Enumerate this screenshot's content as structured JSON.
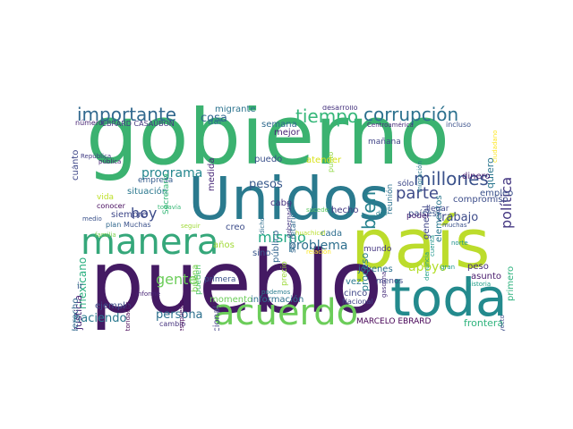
{
  "words": [
    {
      "t": "gobierno",
      "c": "#3bb270"
    },
    {
      "t": "Unidos",
      "c": "#2a7a8e"
    },
    {
      "t": "país",
      "c": "#bcdc2c"
    },
    {
      "t": "pueblo",
      "c": "#441a63"
    },
    {
      "t": "toda",
      "c": "#238a8d"
    },
    {
      "t": "manera",
      "c": "#35a77a"
    },
    {
      "t": "acuerdo",
      "c": "#6ccd5a"
    },
    {
      "t": "importante",
      "c": "#31688e"
    },
    {
      "t": "corrupción",
      "c": "#2c718e"
    },
    {
      "t": "tiempo",
      "c": "#35b779"
    },
    {
      "t": "millones",
      "c": "#3b528b"
    },
    {
      "t": "parte",
      "c": "#3e4a89"
    },
    {
      "t": "bien",
      "c": "#26828e"
    },
    {
      "t": "política",
      "c": "#453882"
    },
    {
      "t": "mismo",
      "c": "#22a884"
    },
    {
      "t": "programa",
      "c": "#24868e"
    },
    {
      "t": "hoy",
      "c": "#3e4c8a"
    },
    {
      "t": "gente",
      "c": "#6ccd5a"
    },
    {
      "t": "apoyo",
      "c": "#b5de2b"
    },
    {
      "t": "problema",
      "c": "#2e6f8e"
    },
    {
      "t": "trabajo",
      "c": "#3e4c8a"
    },
    {
      "t": "persona",
      "c": "#2d708e"
    },
    {
      "t": "haciendo",
      "c": "#2a788e"
    },
    {
      "t": "mexicano",
      "c": "#29af7f"
    },
    {
      "t": "pesos",
      "c": "#38598c"
    },
    {
      "t": "cosa",
      "c": "#31668e"
    },
    {
      "t": "EBRARD CASAUBON",
      "c": "#453781"
    },
    {
      "t": "MARCELO EBRARD",
      "c": "#440154"
    },
    {
      "t": "migrante",
      "c": "#2c738e"
    },
    {
      "t": "desarrollo",
      "c": "#46337e"
    },
    {
      "t": "Centroamérica",
      "c": "#472c7a"
    },
    {
      "t": "incluso",
      "c": "#3b518b"
    },
    {
      "t": "quiero",
      "c": "#2a768e"
    },
    {
      "t": "dinero",
      "c": "#481d6f"
    },
    {
      "t": "empleo",
      "c": "#3b528b"
    },
    {
      "t": "situación",
      "c": "#2a778e"
    },
    {
      "t": "siempre",
      "c": "#3f4889"
    },
    {
      "t": "empresa",
      "c": "#365c8d"
    },
    {
      "t": "justicia",
      "c": "#482677"
    },
    {
      "t": "frontera",
      "c": "#2eb37c"
    },
    {
      "t": "secretario",
      "c": "#31678e"
    },
    {
      "t": "semana",
      "c": "#306a8e"
    },
    {
      "t": "mejor",
      "c": "#482475"
    },
    {
      "t": "medida",
      "c": "#482878"
    },
    {
      "t": "dar",
      "c": "#2d708e"
    },
    {
      "t": "puedo",
      "c": "#3b518b"
    },
    {
      "t": "atender",
      "c": "#d8e219"
    },
    {
      "t": "reunión",
      "c": "#2c728e"
    },
    {
      "t": "general",
      "c": "#404588"
    },
    {
      "t": "elementos",
      "c": "#2a788e"
    },
    {
      "t": "sólo",
      "c": "#3e4989"
    },
    {
      "t": "hecho",
      "c": "#443a83"
    },
    {
      "t": "países",
      "c": "#39558c"
    },
    {
      "t": "cabo",
      "c": "#46327e"
    },
    {
      "t": "cada",
      "c": "#2e6e8e"
    },
    {
      "t": "Guardia Nacional",
      "c": "#424186"
    },
    {
      "t": "público",
      "c": "#32648e"
    },
    {
      "t": "creo",
      "c": "#3d4d8a"
    },
    {
      "t": "años",
      "c": "#a2da37"
    },
    {
      "t": "sino",
      "c": "#39568c"
    },
    {
      "t": "pueden",
      "c": "#4ac16d"
    },
    {
      "t": "momento",
      "c": "#6ccd5a"
    },
    {
      "t": "información",
      "c": "#2d718e"
    },
    {
      "t": "primera",
      "c": "#3b528b"
    },
    {
      "t": "cinco",
      "c": "#3f4788"
    },
    {
      "t": "vez",
      "c": "#29798e"
    },
    {
      "t": "menos",
      "c": "#3e4a89"
    },
    {
      "t": "jóvenes",
      "c": "#2c718e"
    },
    {
      "t": "mundo",
      "c": "#453781"
    },
    {
      "t": "proceso",
      "c": "#287d8e"
    },
    {
      "t": "compromiso",
      "c": "#3d4e8a"
    },
    {
      "t": "llegar",
      "c": "#3f4889"
    },
    {
      "t": "poder",
      "c": "#482173"
    },
    {
      "t": "primero",
      "c": "#2db27d"
    },
    {
      "t": "peso",
      "c": "#472e7c"
    },
    {
      "t": "asunto",
      "c": "#481a6c"
    },
    {
      "t": "derecho",
      "c": "#31688e"
    },
    {
      "t": "ejemplo",
      "c": "#3e4c8a"
    },
    {
      "t": "cambio",
      "c": "#46337e"
    },
    {
      "t": "conocer",
      "c": "#460b5e"
    },
    {
      "t": "cuánto",
      "c": "#3f4889"
    },
    {
      "t": "vida",
      "c": "#bddf26"
    },
    {
      "t": "Secretaría",
      "c": "#37b878"
    },
    {
      "t": "buena",
      "c": "#7ad151"
    },
    {
      "t": "precio",
      "c": "#9dd93b"
    },
    {
      "t": "pública",
      "c": "#482374"
    },
    {
      "t": "número",
      "c": "#482475"
    },
    {
      "t": "punto",
      "c": "#8fd744"
    },
    {
      "t": "seguir",
      "c": "#a0da39"
    },
    {
      "t": "todavía",
      "c": "#38b977"
    },
    {
      "t": "familia",
      "c": "#7ad151"
    },
    {
      "t": "dicho",
      "c": "#2e6e8e"
    },
    {
      "t": "gran",
      "c": "#1e9b8a"
    },
    {
      "t": "norte",
      "c": "#20928c"
    },
    {
      "t": "dijo",
      "c": "#25838e"
    },
    {
      "t": "República",
      "c": "#433e85"
    },
    {
      "t": "medio",
      "c": "#3b528b"
    },
    {
      "t": "ir",
      "c": "#39568c"
    },
    {
      "t": "informe",
      "c": "#482576"
    },
    {
      "t": "muchas",
      "c": "#3b518b"
    },
    {
      "t": "podemos",
      "c": "#287c8e"
    },
    {
      "t": "historia",
      "c": "#1f9e89"
    },
    {
      "t": "proyecto",
      "c": "#3d4e8a"
    },
    {
      "t": "gasolina",
      "c": "#472d7b"
    },
    {
      "t": "cuenta",
      "c": "#1f968b"
    },
    {
      "t": "denuncia",
      "c": "#1fa088"
    },
    {
      "t": "gobernador",
      "c": "#453781"
    },
    {
      "t": "autoridades",
      "c": "#440154"
    },
    {
      "t": "Nacional",
      "c": "#414487"
    },
    {
      "t": "mañana",
      "c": "#414487"
    },
    {
      "t": "migración",
      "c": "#2a788e"
    },
    {
      "t": "relación",
      "c": "#fde725"
    },
    {
      "t": "huachicol",
      "c": "#b8de29"
    },
    {
      "t": "sucede",
      "c": "#5ec962"
    },
    {
      "t": "plan",
      "c": "#31688e"
    },
    {
      "t": "Muchas",
      "c": "#3b528b"
    },
    {
      "t": "presupuesto",
      "c": "#440154"
    },
    {
      "t": "ciudadano",
      "c": "#fde725"
    }
  ]
}
